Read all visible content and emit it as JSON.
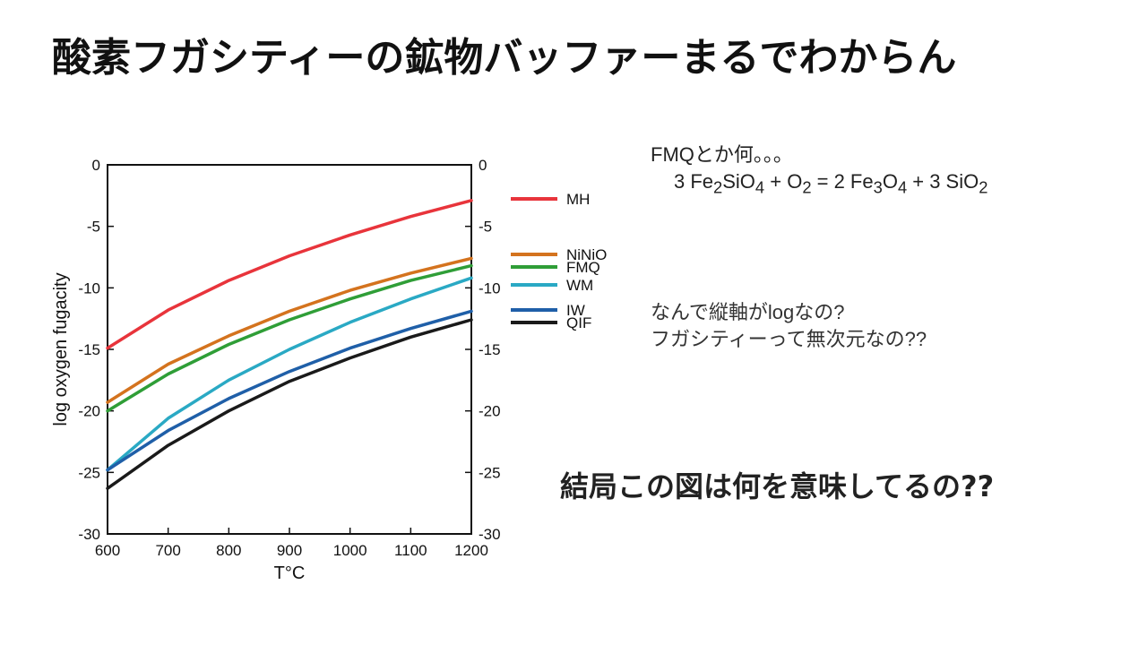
{
  "slide": {
    "title": "酸素フガシティーの鉱物バッファーまるでわからん",
    "note_fmq_prefix": "FMQとか何。。。",
    "equation": {
      "p1": "3 Fe",
      "s1": "2",
      "p2": "SiO",
      "s2": "4",
      "p3": " + O",
      "s3": "2",
      "p4": " = 2 Fe",
      "s4": "3",
      "p5": "O",
      "s5": "4",
      "p6": " + 3 SiO",
      "s6": "2"
    },
    "note_line1": "なんで縦軸がlogなの?",
    "note_line2": "フガシティーって無次元なの??",
    "question": "結局この図は何を意味してるの??"
  },
  "chart_data": {
    "type": "line",
    "title": "",
    "xlabel": "T°C",
    "ylabel": "log oxygen fugacity",
    "xlim": [
      600,
      1200
    ],
    "ylim": [
      -30,
      0
    ],
    "xticks": [
      600,
      700,
      800,
      900,
      1000,
      1100,
      1200
    ],
    "yticks": [
      0,
      -5,
      -10,
      -15,
      -20,
      -25,
      -30
    ],
    "x": [
      600,
      700,
      800,
      900,
      1000,
      1100,
      1200
    ],
    "series": [
      {
        "name": "MH",
        "color": "#e8343b",
        "values": [
          -14.9,
          -11.8,
          -9.4,
          -7.4,
          -5.7,
          -4.2,
          -2.9
        ]
      },
      {
        "name": "NiNiO",
        "color": "#d4731e",
        "values": [
          -19.3,
          -16.2,
          -13.9,
          -11.9,
          -10.2,
          -8.8,
          -7.6
        ]
      },
      {
        "name": "FMQ",
        "color": "#2f9e37",
        "values": [
          -20.0,
          -17.0,
          -14.6,
          -12.6,
          -10.9,
          -9.4,
          -8.2
        ]
      },
      {
        "name": "WM",
        "color": "#2aa9c4",
        "values": [
          -24.8,
          -20.6,
          -17.5,
          -15.0,
          -12.8,
          -10.9,
          -9.2
        ]
      },
      {
        "name": "IW",
        "color": "#1f5fa8",
        "values": [
          -24.8,
          -21.6,
          -19.0,
          -16.8,
          -14.9,
          -13.3,
          -11.9
        ]
      },
      {
        "name": "QIF",
        "color": "#1a1a1a",
        "values": [
          -26.3,
          -22.8,
          -20.0,
          -17.6,
          -15.7,
          -14.0,
          -12.6
        ]
      }
    ],
    "legend_position": "right"
  }
}
